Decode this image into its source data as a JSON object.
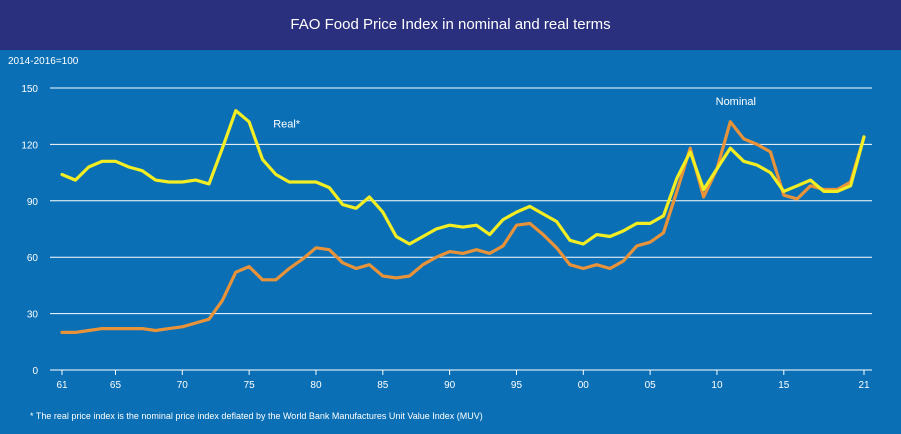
{
  "chart_data": {
    "type": "line",
    "title": "FAO Food Price Index in nominal and real terms",
    "ylabel": "2014-2016=100",
    "footnote": "* The real price index is the nominal price index deflated by the World Bank Manufactures Unit Value Index (MUV)",
    "ylim": [
      0,
      150
    ],
    "yticks": [
      0,
      30,
      60,
      90,
      120,
      150
    ],
    "xlim": [
      1961,
      2021
    ],
    "xticks": [
      {
        "value": 1961,
        "label": "61"
      },
      {
        "value": 1965,
        "label": "65"
      },
      {
        "value": 1970,
        "label": "70"
      },
      {
        "value": 1975,
        "label": "75"
      },
      {
        "value": 1980,
        "label": "80"
      },
      {
        "value": 1985,
        "label": "85"
      },
      {
        "value": 1990,
        "label": "90"
      },
      {
        "value": 1995,
        "label": "95"
      },
      {
        "value": 2000,
        "label": "00"
      },
      {
        "value": 2005,
        "label": "05"
      },
      {
        "value": 2010,
        "label": "10"
      },
      {
        "value": 2015,
        "label": "15"
      },
      {
        "value": 2021,
        "label": "21"
      }
    ],
    "grid": true,
    "x": [
      1961,
      1962,
      1963,
      1964,
      1965,
      1966,
      1967,
      1968,
      1969,
      1970,
      1971,
      1972,
      1973,
      1974,
      1975,
      1976,
      1977,
      1978,
      1979,
      1980,
      1981,
      1982,
      1983,
      1984,
      1985,
      1986,
      1987,
      1988,
      1989,
      1990,
      1991,
      1992,
      1993,
      1994,
      1995,
      1996,
      1997,
      1998,
      1999,
      2000,
      2001,
      2002,
      2003,
      2004,
      2005,
      2006,
      2007,
      2008,
      2009,
      2010,
      2011,
      2012,
      2013,
      2014,
      2015,
      2016,
      2017,
      2018,
      2019,
      2020,
      2021
    ],
    "series": [
      {
        "name": "Real*",
        "color": "#f2ee23",
        "values": [
          104,
          101,
          108,
          111,
          111,
          108,
          106,
          101,
          100,
          100,
          101,
          99,
          118,
          138,
          132,
          112,
          104,
          100,
          100,
          100,
          97,
          88,
          86,
          92,
          84,
          71,
          67,
          71,
          75,
          77,
          76,
          77,
          72,
          80,
          84,
          87,
          83,
          79,
          69,
          67,
          72,
          71,
          74,
          78,
          78,
          82,
          102,
          116,
          96,
          107,
          118,
          111,
          109,
          105,
          95,
          98,
          101,
          95,
          95,
          98,
          124
        ]
      },
      {
        "name": "Nominal",
        "color": "#e8933a",
        "values": [
          20,
          20,
          21,
          22,
          22,
          22,
          22,
          21,
          22,
          23,
          25,
          27,
          37,
          52,
          55,
          48,
          48,
          54,
          59,
          65,
          64,
          57,
          54,
          56,
          50,
          49,
          50,
          56,
          60,
          63,
          62,
          64,
          62,
          66,
          77,
          78,
          72,
          65,
          56,
          54,
          56,
          54,
          58,
          66,
          68,
          73,
          95,
          118,
          92,
          107,
          132,
          123,
          120,
          116,
          93,
          91,
          98,
          96,
          96,
          100,
          124
        ]
      }
    ]
  }
}
